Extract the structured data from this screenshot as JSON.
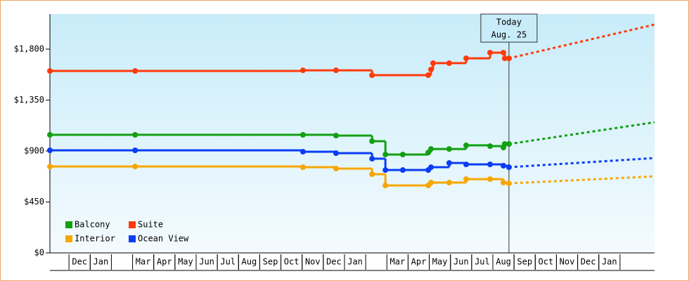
{
  "chart_data": {
    "type": "step-line",
    "xlim": [
      -0.9,
      27.63
    ],
    "xticks": [
      {
        "value": 0.5,
        "label": "Dec"
      },
      {
        "value": 1.5,
        "label": "Jan"
      },
      {
        "value": 3.5,
        "label": "Mar"
      },
      {
        "value": 4.5,
        "label": "Apr"
      },
      {
        "value": 5.5,
        "label": "May"
      },
      {
        "value": 6.5,
        "label": "Jun"
      },
      {
        "value": 7.5,
        "label": "Jul"
      },
      {
        "value": 8.5,
        "label": "Aug"
      },
      {
        "value": 9.5,
        "label": "Sep"
      },
      {
        "value": 10.5,
        "label": "Oct"
      },
      {
        "value": 11.5,
        "label": "Nov"
      },
      {
        "value": 12.5,
        "label": "Dec"
      },
      {
        "value": 13.5,
        "label": "Jan"
      },
      {
        "value": 15.5,
        "label": "Mar"
      },
      {
        "value": 16.5,
        "label": "Apr"
      },
      {
        "value": 17.5,
        "label": "May"
      },
      {
        "value": 18.5,
        "label": "Jun"
      },
      {
        "value": 19.5,
        "label": "Jul"
      },
      {
        "value": 20.5,
        "label": "Aug"
      },
      {
        "value": 21.5,
        "label": "Sep"
      },
      {
        "value": 22.5,
        "label": "Oct"
      },
      {
        "value": 23.5,
        "label": "Nov"
      },
      {
        "value": 24.5,
        "label": "Dec"
      },
      {
        "value": 25.5,
        "label": "Jan"
      }
    ],
    "ylim": [
      0,
      2110
    ],
    "yticks": [
      {
        "value": 0,
        "label": "$0"
      },
      {
        "value": 450,
        "label": "$450"
      },
      {
        "value": 900,
        "label": "$900"
      },
      {
        "value": 1350,
        "label": "$1,350"
      },
      {
        "value": 1800,
        "label": "$1,800"
      }
    ],
    "today": {
      "x": 20.76,
      "label": [
        "Today",
        "Aug. 25"
      ]
    },
    "series": [
      {
        "name": "Balcony",
        "color": "#11a011",
        "x": [
          -0.9,
          3.12,
          11.04,
          12.6,
          14.3,
          14.93,
          15.75,
          16.95,
          17.08,
          17.94,
          18.74,
          19.87,
          20.5,
          20.56,
          20.76
        ],
        "values": [
          1043,
          1043,
          1043,
          1036,
          987,
          869,
          869,
          887,
          918,
          918,
          950,
          943,
          931,
          962,
          962
        ],
        "forecast": {
          "x": [
            20.76,
            27.63
          ],
          "values": [
            962,
            1154
          ]
        }
      },
      {
        "name": "Suite",
        "color": "#ff3a0a",
        "x": [
          -0.9,
          3.12,
          11.04,
          12.6,
          14.3,
          16.95,
          17.08,
          17.18,
          17.94,
          18.74,
          19.87,
          20.5,
          20.56,
          20.76
        ],
        "values": [
          1607,
          1607,
          1613,
          1613,
          1570,
          1570,
          1620,
          1676,
          1676,
          1719,
          1769,
          1769,
          1719,
          1719
        ],
        "forecast": {
          "x": [
            20.76,
            27.63
          ],
          "values": [
            1719,
            2017
          ]
        }
      },
      {
        "name": "Interior",
        "color": "#f7a600",
        "x": [
          -0.9,
          3.12,
          11.04,
          12.6,
          14.3,
          14.93,
          16.95,
          17.08,
          17.94,
          18.74,
          19.87,
          20.5,
          20.76
        ],
        "values": [
          763,
          763,
          757,
          745,
          695,
          596,
          596,
          621,
          621,
          652,
          652,
          621,
          614
        ],
        "forecast": {
          "x": [
            20.76,
            27.63
          ],
          "values": [
            614,
            676
          ]
        }
      },
      {
        "name": "Ocean View",
        "color": "#0a3cf5",
        "x": [
          -0.9,
          3.12,
          11.04,
          12.6,
          14.3,
          14.93,
          15.75,
          16.95,
          17.08,
          17.94,
          18.74,
          19.87,
          20.5,
          20.76
        ],
        "values": [
          906,
          906,
          894,
          881,
          832,
          732,
          732,
          732,
          757,
          794,
          782,
          782,
          770,
          757
        ],
        "forecast": {
          "x": [
            20.76,
            27.63
          ],
          "values": [
            757,
            838
          ]
        }
      }
    ]
  }
}
